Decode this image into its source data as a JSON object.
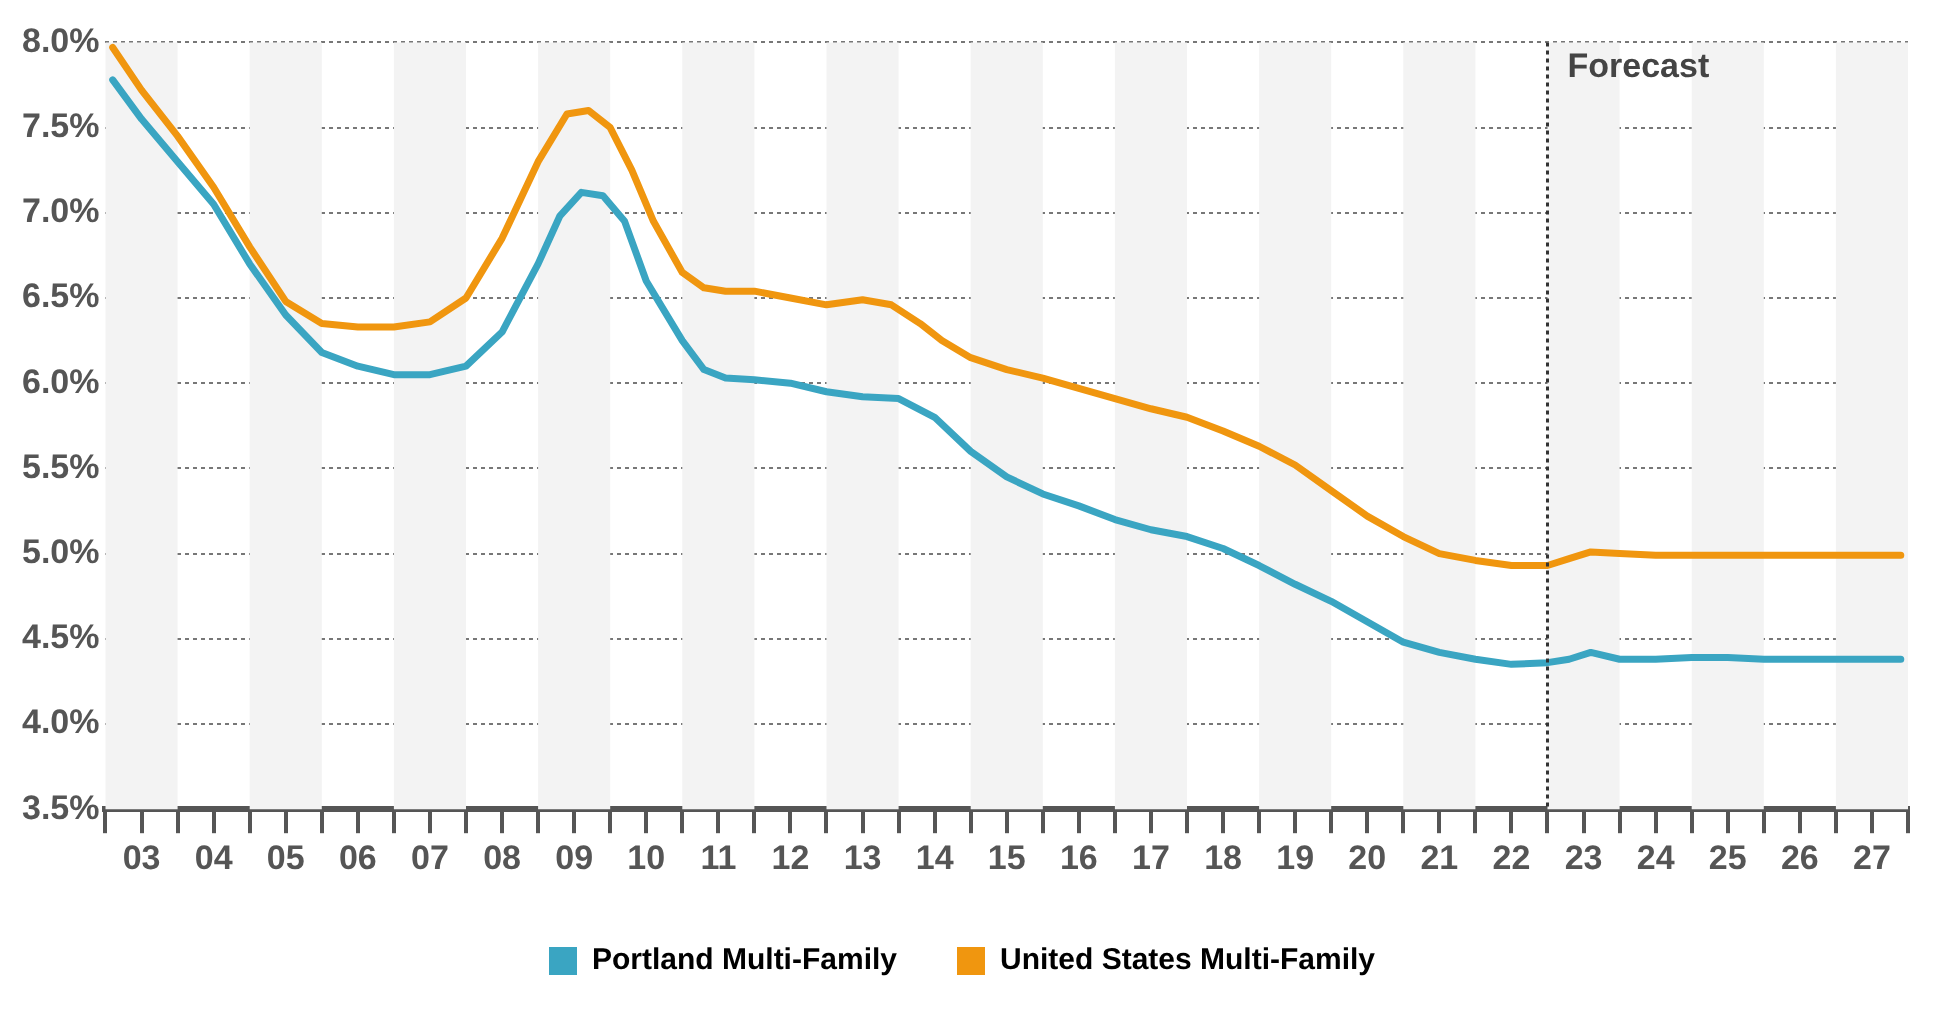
{
  "chart_data": {
    "type": "line",
    "series": [
      {
        "name": "Portland Multi-Family",
        "color": "#3aa5c2",
        "x": [
          2.6,
          3.0,
          3.5,
          4.0,
          4.5,
          5.0,
          5.5,
          6.0,
          6.5,
          7.0,
          7.5,
          8.0,
          8.5,
          8.8,
          9.1,
          9.4,
          9.7,
          10.0,
          10.5,
          10.8,
          11.1,
          11.5,
          12.0,
          12.5,
          13.0,
          13.5,
          14.0,
          14.5,
          15.0,
          15.5,
          16.0,
          16.5,
          17.0,
          17.5,
          18.0,
          18.5,
          19.0,
          19.5,
          20.0,
          20.5,
          21.0,
          21.5,
          22.0,
          22.5,
          22.8,
          23.1,
          23.5,
          24.0,
          24.5,
          25.0,
          25.5,
          26.5,
          27.4
        ],
        "values": [
          7.78,
          7.55,
          7.3,
          7.05,
          6.7,
          6.4,
          6.18,
          6.1,
          6.05,
          6.05,
          6.1,
          6.3,
          6.7,
          6.98,
          7.12,
          7.1,
          6.95,
          6.6,
          6.25,
          6.08,
          6.03,
          6.02,
          6.0,
          5.95,
          5.92,
          5.91,
          5.8,
          5.6,
          5.45,
          5.35,
          5.28,
          5.2,
          5.14,
          5.1,
          5.03,
          4.93,
          4.82,
          4.72,
          4.6,
          4.48,
          4.42,
          4.38,
          4.35,
          4.36,
          4.38,
          4.42,
          4.38,
          4.38,
          4.39,
          4.39,
          4.38,
          4.38,
          4.38
        ]
      },
      {
        "name": "United States Multi-Family",
        "color": "#f0960f",
        "x": [
          2.6,
          3.0,
          3.5,
          4.0,
          4.5,
          5.0,
          5.5,
          6.0,
          6.5,
          7.0,
          7.5,
          8.0,
          8.5,
          8.9,
          9.2,
          9.5,
          9.8,
          10.1,
          10.5,
          10.8,
          11.1,
          11.5,
          12.0,
          12.5,
          13.0,
          13.4,
          13.8,
          14.1,
          14.5,
          15.0,
          15.5,
          16.0,
          16.5,
          17.0,
          17.5,
          18.0,
          18.5,
          19.0,
          19.5,
          20.0,
          20.5,
          21.0,
          21.5,
          22.0,
          22.5,
          22.8,
          23.1,
          23.5,
          24.0,
          24.5,
          25.5,
          26.5,
          27.4
        ],
        "values": [
          7.97,
          7.72,
          7.45,
          7.15,
          6.8,
          6.48,
          6.35,
          6.33,
          6.33,
          6.36,
          6.5,
          6.85,
          7.3,
          7.58,
          7.6,
          7.5,
          7.25,
          6.95,
          6.65,
          6.56,
          6.54,
          6.54,
          6.5,
          6.46,
          6.49,
          6.46,
          6.35,
          6.25,
          6.15,
          6.08,
          6.03,
          5.97,
          5.91,
          5.85,
          5.8,
          5.72,
          5.63,
          5.52,
          5.37,
          5.22,
          5.1,
          5.0,
          4.96,
          4.93,
          4.93,
          4.97,
          5.01,
          5.0,
          4.99,
          4.99,
          4.99,
          4.99,
          4.99
        ]
      }
    ],
    "xlim": [
      2.5,
      27.5
    ],
    "xticks": [
      {
        "value": 2.5,
        "label": null
      },
      {
        "value": 3,
        "label": "03"
      },
      {
        "value": 3.5,
        "label": null
      },
      {
        "value": 4,
        "label": "04"
      },
      {
        "value": 4.5,
        "label": null
      },
      {
        "value": 5,
        "label": "05"
      },
      {
        "value": 5.5,
        "label": null
      },
      {
        "value": 6,
        "label": "06"
      },
      {
        "value": 6.5,
        "label": null
      },
      {
        "value": 7,
        "label": "07"
      },
      {
        "value": 7.5,
        "label": null
      },
      {
        "value": 8,
        "label": "08"
      },
      {
        "value": 8.5,
        "label": null
      },
      {
        "value": 9,
        "label": "09"
      },
      {
        "value": 9.5,
        "label": null
      },
      {
        "value": 10,
        "label": "10"
      },
      {
        "value": 10.5,
        "label": null
      },
      {
        "value": 11,
        "label": "11"
      },
      {
        "value": 11.5,
        "label": null
      },
      {
        "value": 12,
        "label": "12"
      },
      {
        "value": 12.5,
        "label": null
      },
      {
        "value": 13,
        "label": "13"
      },
      {
        "value": 13.5,
        "label": null
      },
      {
        "value": 14,
        "label": "14"
      },
      {
        "value": 14.5,
        "label": null
      },
      {
        "value": 15,
        "label": "15"
      },
      {
        "value": 15.5,
        "label": null
      },
      {
        "value": 16,
        "label": "16"
      },
      {
        "value": 16.5,
        "label": null
      },
      {
        "value": 17,
        "label": "17"
      },
      {
        "value": 17.5,
        "label": null
      },
      {
        "value": 18,
        "label": "18"
      },
      {
        "value": 18.5,
        "label": null
      },
      {
        "value": 19,
        "label": "19"
      },
      {
        "value": 19.5,
        "label": null
      },
      {
        "value": 20,
        "label": "20"
      },
      {
        "value": 20.5,
        "label": null
      },
      {
        "value": 21,
        "label": "21"
      },
      {
        "value": 21.5,
        "label": null
      },
      {
        "value": 22,
        "label": "22"
      },
      {
        "value": 22.5,
        "label": null
      },
      {
        "value": 23,
        "label": "23"
      },
      {
        "value": 23.5,
        "label": null
      },
      {
        "value": 24,
        "label": "24"
      },
      {
        "value": 24.5,
        "label": null
      },
      {
        "value": 25,
        "label": "25"
      },
      {
        "value": 25.5,
        "label": null
      },
      {
        "value": 26,
        "label": "26"
      },
      {
        "value": 26.5,
        "label": null
      },
      {
        "value": 27,
        "label": "27"
      },
      {
        "value": 27.5,
        "label": null
      }
    ],
    "ylim": [
      3.5,
      8.0
    ],
    "yticks": [
      {
        "value": 3.5,
        "label": "3.5%"
      },
      {
        "value": 4.0,
        "label": "4.0%"
      },
      {
        "value": 4.5,
        "label": "4.5%"
      },
      {
        "value": 5.0,
        "label": "5.0%"
      },
      {
        "value": 5.5,
        "label": "5.5%"
      },
      {
        "value": 6.0,
        "label": "6.0%"
      },
      {
        "value": 6.5,
        "label": "6.5%"
      },
      {
        "value": 7.0,
        "label": "7.0%"
      },
      {
        "value": 7.5,
        "label": "7.5%"
      },
      {
        "value": 8.0,
        "label": "8.0%"
      }
    ],
    "grid": "y",
    "legend": "bottom",
    "marker": "none",
    "line_style": "solid",
    "ref_lines": [
      {
        "axis": "x",
        "value": 22.5,
        "label": "Forecast",
        "color": "#333333",
        "line_style": "dotted"
      }
    ],
    "bands": [
      {
        "axis": "x",
        "from": 2.5,
        "to": 3.5,
        "color": "#f3f3f3"
      },
      {
        "axis": "x",
        "from": 4.5,
        "to": 5.5,
        "color": "#f3f3f3"
      },
      {
        "axis": "x",
        "from": 6.5,
        "to": 7.5,
        "color": "#f3f3f3"
      },
      {
        "axis": "x",
        "from": 8.5,
        "to": 9.5,
        "color": "#f3f3f3"
      },
      {
        "axis": "x",
        "from": 10.5,
        "to": 11.5,
        "color": "#f3f3f3"
      },
      {
        "axis": "x",
        "from": 12.5,
        "to": 13.5,
        "color": "#f3f3f3"
      },
      {
        "axis": "x",
        "from": 14.5,
        "to": 15.5,
        "color": "#f3f3f3"
      },
      {
        "axis": "x",
        "from": 16.5,
        "to": 17.5,
        "color": "#f3f3f3"
      },
      {
        "axis": "x",
        "from": 18.5,
        "to": 19.5,
        "color": "#f3f3f3"
      },
      {
        "axis": "x",
        "from": 20.5,
        "to": 21.5,
        "color": "#f3f3f3"
      },
      {
        "axis": "x",
        "from": 22.5,
        "to": 23.5,
        "color": "#f3f3f3"
      },
      {
        "axis": "x",
        "from": 24.5,
        "to": 25.5,
        "color": "#f3f3f3"
      },
      {
        "axis": "x",
        "from": 26.5,
        "to": 27.5,
        "color": "#f3f3f3"
      }
    ]
  }
}
